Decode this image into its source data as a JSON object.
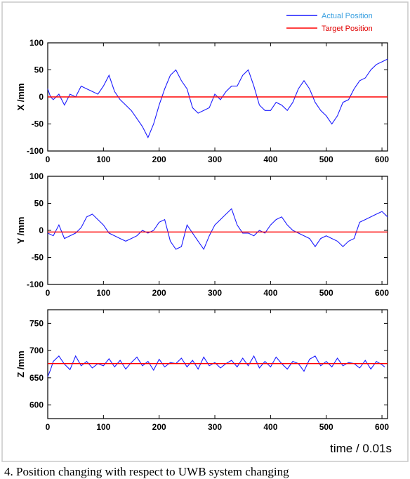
{
  "figure": {
    "xlabel": "time / 0.01s",
    "caption": "4. Position changing with respect to UWB system changing"
  },
  "chart_data": [
    {
      "type": "line",
      "legend": "top-right",
      "xlim": [
        0,
        610
      ],
      "ylim": [
        -100,
        100
      ],
      "ylabel": "X /mm",
      "xticks": [
        0,
        100,
        200,
        300,
        400,
        500,
        600
      ],
      "yticks": [
        -100,
        -50,
        0,
        50,
        100
      ],
      "series": [
        {
          "name": "Actual Position",
          "color": "#1a1aff",
          "x": [
            0,
            5,
            10,
            20,
            30,
            40,
            50,
            60,
            70,
            80,
            90,
            100,
            110,
            120,
            130,
            140,
            150,
            160,
            170,
            180,
            190,
            200,
            210,
            220,
            230,
            240,
            250,
            260,
            270,
            280,
            290,
            300,
            310,
            320,
            330,
            340,
            350,
            360,
            370,
            380,
            390,
            400,
            410,
            420,
            430,
            440,
            450,
            460,
            470,
            480,
            490,
            500,
            510,
            520,
            530,
            540,
            550,
            560,
            570,
            580,
            590,
            600,
            610
          ],
          "y": [
            15,
            0,
            -5,
            5,
            -15,
            5,
            0,
            20,
            15,
            10,
            5,
            20,
            40,
            10,
            -5,
            -15,
            -25,
            -40,
            -55,
            -75,
            -50,
            -15,
            15,
            40,
            50,
            30,
            15,
            -20,
            -30,
            -25,
            -20,
            5,
            -5,
            10,
            20,
            20,
            40,
            50,
            20,
            -15,
            -25,
            -25,
            -10,
            -15,
            -25,
            -10,
            15,
            30,
            15,
            -10,
            -25,
            -35,
            -50,
            -35,
            -10,
            -5,
            15,
            30,
            35,
            50,
            60,
            65,
            70
          ]
        },
        {
          "name": "Target Position",
          "color": "#ff0000",
          "x": [
            0,
            610
          ],
          "y": [
            0,
            0
          ]
        }
      ]
    },
    {
      "type": "line",
      "xlim": [
        0,
        610
      ],
      "ylim": [
        -100,
        100
      ],
      "ylabel": "Y /mm",
      "xticks": [
        0,
        100,
        200,
        300,
        400,
        500,
        600
      ],
      "yticks": [
        -100,
        -50,
        0,
        50,
        100
      ],
      "series": [
        {
          "name": "Actual Position",
          "color": "#1a1aff",
          "x": [
            0,
            10,
            20,
            30,
            40,
            50,
            60,
            70,
            80,
            90,
            100,
            110,
            120,
            130,
            140,
            150,
            160,
            170,
            180,
            190,
            200,
            210,
            220,
            230,
            240,
            250,
            260,
            270,
            280,
            290,
            300,
            310,
            320,
            330,
            340,
            350,
            360,
            370,
            380,
            390,
            400,
            410,
            420,
            430,
            440,
            450,
            460,
            470,
            480,
            490,
            500,
            510,
            520,
            530,
            540,
            550,
            560,
            570,
            580,
            590,
            600,
            610
          ],
          "y": [
            -5,
            -10,
            10,
            -15,
            -10,
            -5,
            5,
            25,
            30,
            20,
            10,
            -5,
            -10,
            -15,
            -20,
            -15,
            -10,
            0,
            -5,
            0,
            15,
            20,
            -20,
            -35,
            -30,
            10,
            -5,
            -20,
            -35,
            -10,
            10,
            20,
            30,
            40,
            10,
            -5,
            -5,
            -10,
            0,
            -5,
            10,
            20,
            25,
            10,
            0,
            -5,
            -10,
            -15,
            -30,
            -15,
            -10,
            -15,
            -20,
            -30,
            -20,
            -15,
            15,
            20,
            25,
            30,
            35,
            25
          ]
        },
        {
          "name": "Target Position",
          "color": "#ff0000",
          "x": [
            0,
            610
          ],
          "y": [
            -3,
            -3
          ]
        }
      ]
    },
    {
      "type": "line",
      "xlim": [
        0,
        610
      ],
      "ylim": [
        575,
        775
      ],
      "ylabel": "Z /mm",
      "xticks": [
        0,
        100,
        200,
        300,
        400,
        500,
        600
      ],
      "yticks": [
        600,
        650,
        700,
        750
      ],
      "series": [
        {
          "name": "Actual Position",
          "color": "#1a1aff",
          "x": [
            0,
            5,
            10,
            20,
            30,
            40,
            50,
            60,
            70,
            80,
            90,
            100,
            110,
            120,
            130,
            140,
            150,
            160,
            170,
            180,
            190,
            200,
            210,
            220,
            230,
            240,
            250,
            260,
            270,
            280,
            290,
            300,
            310,
            320,
            330,
            340,
            350,
            360,
            370,
            380,
            390,
            400,
            410,
            420,
            430,
            440,
            450,
            460,
            470,
            480,
            490,
            500,
            510,
            520,
            530,
            540,
            550,
            560,
            570,
            580,
            590,
            600,
            605
          ],
          "y": [
            652,
            665,
            680,
            690,
            675,
            665,
            690,
            672,
            680,
            668,
            676,
            672,
            685,
            670,
            682,
            666,
            678,
            688,
            672,
            680,
            664,
            684,
            670,
            678,
            676,
            686,
            670,
            682,
            666,
            688,
            672,
            678,
            668,
            676,
            682,
            670,
            686,
            672,
            690,
            668,
            680,
            670,
            688,
            676,
            666,
            680,
            676,
            662,
            684,
            690,
            672,
            680,
            670,
            686,
            672,
            678,
            676,
            668,
            682,
            666,
            680,
            674,
            670
          ]
        },
        {
          "name": "Target Position",
          "color": "#ff0000",
          "x": [
            0,
            610
          ],
          "y": [
            676,
            676
          ]
        }
      ]
    }
  ]
}
